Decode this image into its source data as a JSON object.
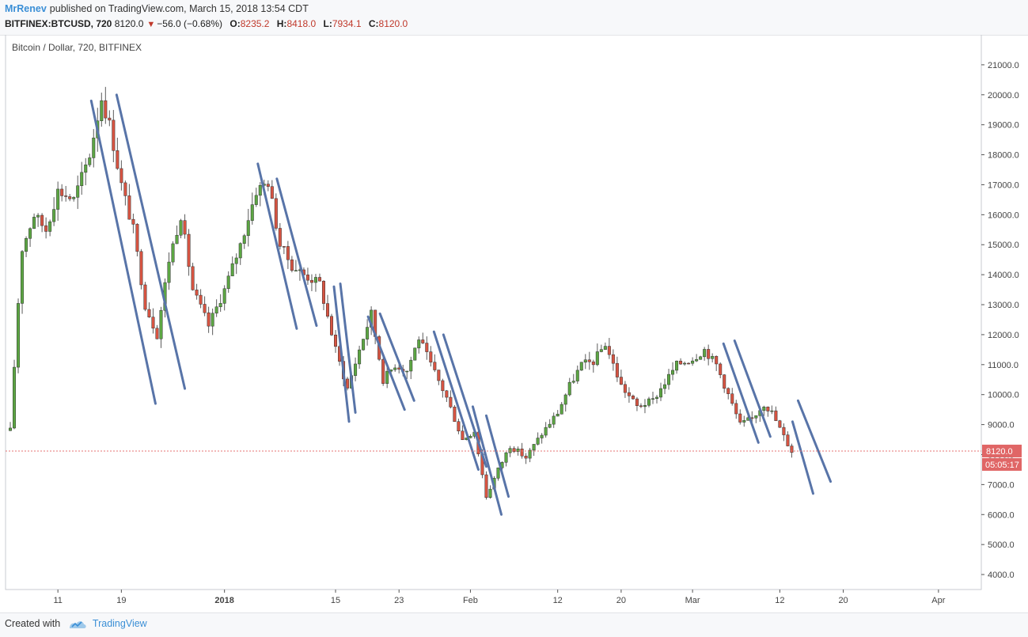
{
  "header": {
    "author": "MrRenev",
    "published": "published on TradingView.com, March 15, 2018 13:54 CDT",
    "symbol": "BITFINEX:BTCUSD, 720",
    "last": "8120.0",
    "change": "−56.0 (−0.68%)",
    "o_label": "O:",
    "o_value": "8235.2",
    "h_label": "H:",
    "h_value": "8418.0",
    "l_label": "L:",
    "l_value": "7934.1",
    "c_label": "C:",
    "c_value": "8120.0"
  },
  "footer": {
    "created": "Created with",
    "brand": "TradingView"
  },
  "colors": {
    "up_fill": "#6ba583",
    "up_body": "#5ca643",
    "down_body": "#d75442",
    "wick": "#5b5b5b",
    "trendline": "#5874a8",
    "price_line": "#e57373",
    "price_tag": "#e06666"
  },
  "chart_data": {
    "type": "candlestick",
    "title": "Bitcoin / Dollar, 720, BITFINEX",
    "ylim": [
      3500,
      22000
    ],
    "y_ticks": [
      4000,
      5000,
      6000,
      7000,
      8000,
      9000,
      10000,
      11000,
      12000,
      13000,
      14000,
      15000,
      16000,
      17000,
      18000,
      19000,
      20000,
      21000
    ],
    "y_tick_labels": [
      "4000.0",
      "5000.0",
      "6000.0",
      "7000.0",
      "8000.0",
      "9000.0",
      "10000.0",
      "11000.0",
      "12000.0",
      "13000.0",
      "14000.0",
      "15000.0",
      "16000.0",
      "17000.0",
      "18000.0",
      "19000.0",
      "20000.0",
      "21000.0"
    ],
    "x_ticks": [
      {
        "t": 9,
        "label": "11"
      },
      {
        "t": 17,
        "label": "19"
      },
      {
        "t": 30,
        "label": "2018",
        "bold": true
      },
      {
        "t": 44,
        "label": "15"
      },
      {
        "t": 52,
        "label": "23"
      },
      {
        "t": 61,
        "label": "Feb"
      },
      {
        "t": 72,
        "label": "12"
      },
      {
        "t": 80,
        "label": "20"
      },
      {
        "t": 89,
        "label": "Mar"
      },
      {
        "t": 100,
        "label": "12"
      },
      {
        "t": 108,
        "label": "20"
      },
      {
        "t": 120,
        "label": "Apr"
      }
    ],
    "x_range": [
      2.4,
      125.4
    ],
    "last_price": 8120.0,
    "last_price_label": "8120.0",
    "countdown": "05:05:17",
    "anchors": [
      [
        3,
        8800
      ],
      [
        4.4,
        14800
      ],
      [
        6,
        16000
      ],
      [
        7.5,
        15500
      ],
      [
        9,
        16800
      ],
      [
        11,
        16500
      ],
      [
        13,
        18000
      ],
      [
        14.5,
        19900
      ],
      [
        15.5,
        19000
      ],
      [
        17,
        17000
      ],
      [
        18.5,
        15500
      ],
      [
        20,
        13000
      ],
      [
        21.5,
        12000
      ],
      [
        23,
        14500
      ],
      [
        24.5,
        16000
      ],
      [
        26,
        13500
      ],
      [
        28,
        12300
      ],
      [
        30,
        13500
      ],
      [
        32,
        15000
      ],
      [
        34,
        16800
      ],
      [
        35.5,
        17100
      ],
      [
        37,
        15000
      ],
      [
        38.5,
        14300
      ],
      [
        40,
        14000
      ],
      [
        42,
        13700
      ],
      [
        44,
        11500
      ],
      [
        45.5,
        10200
      ],
      [
        47,
        11500
      ],
      [
        48.5,
        12700
      ],
      [
        50,
        10500
      ],
      [
        51.5,
        11000
      ],
      [
        53,
        10800
      ],
      [
        54.5,
        11900
      ],
      [
        56,
        11000
      ],
      [
        58,
        9900
      ],
      [
        60,
        8500
      ],
      [
        61.5,
        8800
      ],
      [
        63,
        6600
      ],
      [
        64.5,
        7500
      ],
      [
        66,
        8300
      ],
      [
        68,
        7900
      ],
      [
        70,
        8700
      ],
      [
        72,
        9400
      ],
      [
        73.5,
        10300
      ],
      [
        75,
        11000
      ],
      [
        76.5,
        11100
      ],
      [
        78,
        11700
      ],
      [
        80,
        10300
      ],
      [
        82,
        9600
      ],
      [
        84,
        9800
      ],
      [
        85.5,
        10400
      ],
      [
        87,
        11000
      ],
      [
        89,
        11200
      ],
      [
        90.5,
        11500
      ],
      [
        92,
        11000
      ],
      [
        93.5,
        10000
      ],
      [
        95,
        9000
      ],
      [
        96.5,
        9200
      ],
      [
        98,
        9700
      ],
      [
        99,
        9400
      ],
      [
        100.5,
        8600
      ],
      [
        101.5,
        8120
      ]
    ],
    "trendlines": [
      {
        "t1": 13.2,
        "p1": 19800,
        "t2": 21.3,
        "p2": 9700
      },
      {
        "t1": 16.4,
        "p1": 20000,
        "t2": 25.0,
        "p2": 10200
      },
      {
        "t1": 34.2,
        "p1": 17700,
        "t2": 39.1,
        "p2": 12200
      },
      {
        "t1": 36.6,
        "p1": 17200,
        "t2": 41.6,
        "p2": 12300
      },
      {
        "t1": 43.8,
        "p1": 13600,
        "t2": 45.7,
        "p2": 9100
      },
      {
        "t1": 44.6,
        "p1": 13700,
        "t2": 46.5,
        "p2": 9400
      },
      {
        "t1": 48.1,
        "p1": 12600,
        "t2": 52.7,
        "p2": 9500
      },
      {
        "t1": 49.6,
        "p1": 12700,
        "t2": 53.9,
        "p2": 9800
      },
      {
        "t1": 56.4,
        "p1": 12100,
        "t2": 62.0,
        "p2": 7500
      },
      {
        "t1": 57.6,
        "p1": 12000,
        "t2": 63.0,
        "p2": 7600
      },
      {
        "t1": 61.3,
        "p1": 9600,
        "t2": 64.9,
        "p2": 6000
      },
      {
        "t1": 63.0,
        "p1": 9300,
        "t2": 65.8,
        "p2": 6600
      },
      {
        "t1": 92.9,
        "p1": 11700,
        "t2": 97.3,
        "p2": 8400
      },
      {
        "t1": 94.3,
        "p1": 11800,
        "t2": 98.8,
        "p2": 8600
      },
      {
        "t1": 101.6,
        "p1": 9100,
        "t2": 104.2,
        "p2": 6700
      },
      {
        "t1": 102.3,
        "p1": 9800,
        "t2": 106.4,
        "p2": 7100
      }
    ]
  }
}
